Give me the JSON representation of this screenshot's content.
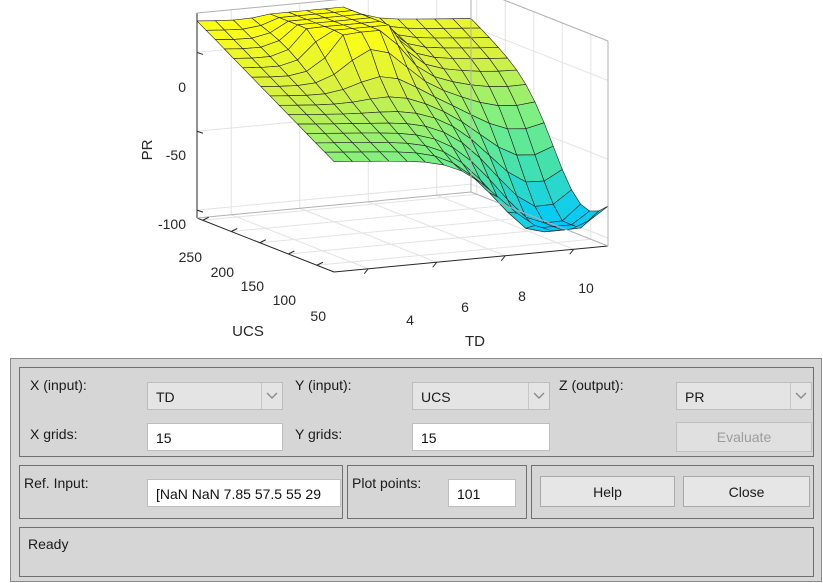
{
  "chart_data": {
    "type": "surface",
    "xlabel": "TD",
    "ylabel": "UCS",
    "zlabel": "PR",
    "x_ticks": [
      "4",
      "6",
      "8",
      "10"
    ],
    "y_ticks": [
      "50",
      "100",
      "150",
      "200",
      "250"
    ],
    "z_ticks": [
      "0",
      "-50",
      "-100"
    ],
    "xlim": [
      3,
      11
    ],
    "ylim": [
      20,
      260
    ],
    "zlim": [
      -100,
      20
    ],
    "grid": true,
    "colormap": [
      "#00c8ff",
      "#40e0b0",
      "#80f080",
      "#d8f040",
      "#ffff10"
    ]
  },
  "controls": {
    "x_input_label": "X (input):",
    "x_input_value": "TD",
    "y_input_label": "Y (input):",
    "y_input_value": "UCS",
    "z_output_label": "Z (output):",
    "z_output_value": "PR",
    "x_grids_label": "X grids:",
    "x_grids_value": "15",
    "y_grids_label": "Y grids:",
    "y_grids_value": "15",
    "evaluate_label": "Evaluate",
    "ref_input_label": "Ref. Input:",
    "ref_input_value": "[NaN NaN 7.85 57.5 55 29",
    "plot_points_label": "Plot points:",
    "plot_points_value": "101",
    "help_label": "Help",
    "close_label": "Close",
    "status": "Ready"
  }
}
